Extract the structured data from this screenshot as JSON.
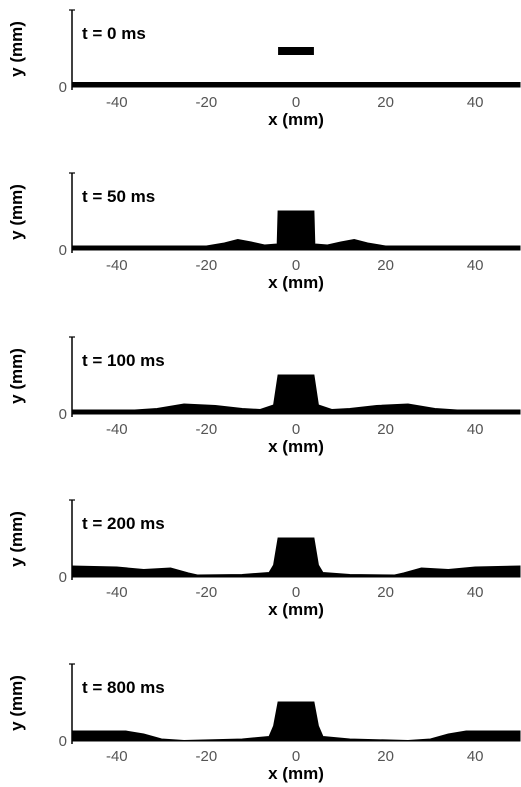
{
  "chart_data": [
    {
      "type": "area",
      "time_label": "t = 0 ms",
      "xlabel": "x (mm)",
      "ylabel": "y (mm)",
      "xlim": [
        -50,
        50
      ],
      "x_ticks": [
        "-40",
        "-20",
        "0",
        "20",
        "40"
      ],
      "y_ticks": [
        "0"
      ],
      "droplet": {
        "x_left": -4,
        "x_right": 4,
        "bottom": 3.2,
        "top": 4.0
      },
      "profile": [
        [
          -50,
          0.45
        ],
        [
          50,
          0.45
        ]
      ]
    },
    {
      "type": "area",
      "time_label": "t = 50 ms",
      "xlabel": "x (mm)",
      "ylabel": "y (mm)",
      "xlim": [
        -50,
        50
      ],
      "x_ticks": [
        "-40",
        "-20",
        "0",
        "20",
        "40"
      ],
      "y_ticks": [
        "0"
      ],
      "profile": [
        [
          -50,
          0.4
        ],
        [
          -20,
          0.4
        ],
        [
          -16,
          0.7
        ],
        [
          -13,
          1.05
        ],
        [
          -10,
          0.8
        ],
        [
          -7,
          0.5
        ],
        [
          -4.2,
          0.6
        ],
        [
          -4,
          3.9
        ],
        [
          4,
          3.9
        ],
        [
          4.2,
          0.6
        ],
        [
          7,
          0.5
        ],
        [
          10,
          0.8
        ],
        [
          13,
          1.05
        ],
        [
          16,
          0.7
        ],
        [
          20,
          0.4
        ],
        [
          50,
          0.4
        ]
      ]
    },
    {
      "type": "area",
      "time_label": "t = 100 ms",
      "xlabel": "x (mm)",
      "ylabel": "y (mm)",
      "xlim": [
        -50,
        50
      ],
      "x_ticks": [
        "-40",
        "-20",
        "0",
        "20",
        "40"
      ],
      "y_ticks": [
        "0"
      ],
      "profile": [
        [
          -50,
          0.4
        ],
        [
          -36,
          0.4
        ],
        [
          -31,
          0.55
        ],
        [
          -25,
          1.0
        ],
        [
          -18,
          0.85
        ],
        [
          -12,
          0.55
        ],
        [
          -8,
          0.45
        ],
        [
          -5,
          0.9
        ],
        [
          -4,
          3.9
        ],
        [
          4,
          3.9
        ],
        [
          5,
          0.9
        ],
        [
          8,
          0.45
        ],
        [
          12,
          0.55
        ],
        [
          18,
          0.85
        ],
        [
          25,
          1.0
        ],
        [
          31,
          0.55
        ],
        [
          36,
          0.4
        ],
        [
          50,
          0.4
        ]
      ]
    },
    {
      "type": "area",
      "time_label": "t = 200 ms",
      "xlabel": "x (mm)",
      "ylabel": "y (mm)",
      "xlim": [
        -50,
        50
      ],
      "x_ticks": [
        "-40",
        "-20",
        "0",
        "20",
        "40"
      ],
      "y_ticks": [
        "0"
      ],
      "profile": [
        [
          -50,
          1.1
        ],
        [
          -40,
          1.0
        ],
        [
          -34,
          0.75
        ],
        [
          -28,
          0.9
        ],
        [
          -24,
          0.4
        ],
        [
          -22,
          0.2
        ],
        [
          -12,
          0.25
        ],
        [
          -6,
          0.45
        ],
        [
          -5,
          1.2
        ],
        [
          -4,
          3.9
        ],
        [
          4,
          3.9
        ],
        [
          5,
          1.2
        ],
        [
          6,
          0.45
        ],
        [
          12,
          0.25
        ],
        [
          22,
          0.2
        ],
        [
          24,
          0.4
        ],
        [
          28,
          0.9
        ],
        [
          34,
          0.75
        ],
        [
          40,
          1.0
        ],
        [
          50,
          1.1
        ]
      ]
    },
    {
      "type": "area",
      "time_label": "t = 800 ms",
      "xlabel": "x (mm)",
      "ylabel": "y (mm)",
      "xlim": [
        -50,
        50
      ],
      "x_ticks": [
        "-40",
        "-20",
        "0",
        "20",
        "40"
      ],
      "y_ticks": [
        "0"
      ],
      "profile": [
        [
          -50,
          1.0
        ],
        [
          -38,
          1.0
        ],
        [
          -34,
          0.7
        ],
        [
          -30,
          0.2
        ],
        [
          -25,
          0.05
        ],
        [
          -12,
          0.2
        ],
        [
          -6,
          0.45
        ],
        [
          -5,
          1.5
        ],
        [
          -4,
          3.9
        ],
        [
          4,
          3.9
        ],
        [
          5,
          1.5
        ],
        [
          6,
          0.45
        ],
        [
          12,
          0.2
        ],
        [
          25,
          0.05
        ],
        [
          30,
          0.2
        ],
        [
          34,
          0.7
        ],
        [
          38,
          1.0
        ],
        [
          50,
          1.0
        ]
      ]
    }
  ]
}
